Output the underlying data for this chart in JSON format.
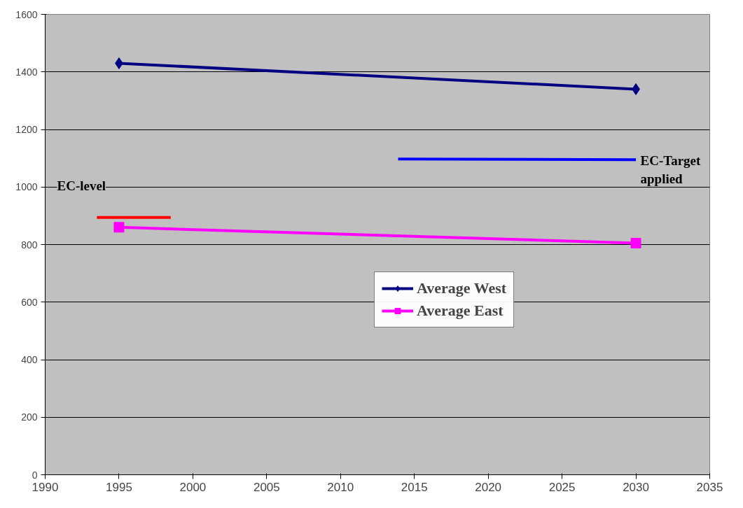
{
  "chart_data": {
    "type": "line",
    "x": [
      1995,
      2030
    ],
    "series": [
      {
        "name": "Average West",
        "color": "#000080",
        "values": [
          1430,
          1340
        ],
        "marker": "diamond"
      },
      {
        "name": "Average East",
        "color": "#ff00ff",
        "values": [
          860,
          805
        ],
        "marker": "square"
      },
      {
        "color": "#ff0000",
        "x": [
          1993.5,
          1998.5
        ],
        "values": [
          894,
          894
        ],
        "marker": "none"
      },
      {
        "color": "#0000ff",
        "x": [
          2013.9,
          2030
        ],
        "values": [
          1097,
          1095
        ],
        "marker": "none"
      }
    ],
    "annotations": [
      "EC-level",
      "EC-Target\napplied"
    ],
    "xlim": [
      1990,
      2035
    ],
    "xticks": [
      1990,
      1995,
      2000,
      2005,
      2010,
      2015,
      2020,
      2025,
      2030,
      2035
    ],
    "ylim": [
      0,
      1600
    ],
    "yticks": [
      0,
      200,
      400,
      600,
      800,
      1000,
      1200,
      1400,
      1600
    ],
    "grid": "y",
    "legend": "right"
  }
}
